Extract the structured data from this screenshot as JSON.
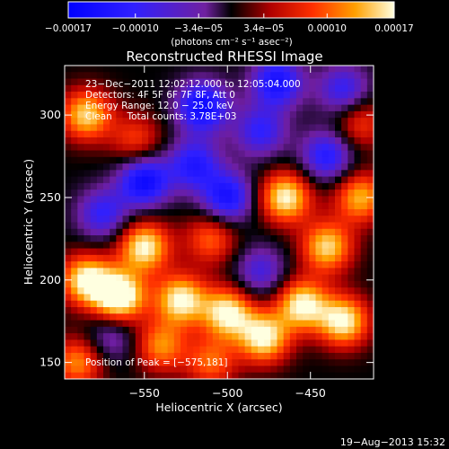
{
  "chart_data": {
    "type": "heatmap",
    "title": "Reconstructed RHESSI Image",
    "xlabel": "Heliocentric X (arcsec)",
    "ylabel": "Heliocentric Y (arcsec)",
    "xlim": [
      -598,
      -412
    ],
    "ylim": [
      140,
      330
    ],
    "xticks": [
      -550,
      -500,
      -450
    ],
    "xtick_labels": [
      "−550",
      "−500",
      "−450"
    ],
    "yticks": [
      150,
      200,
      250,
      300
    ],
    "ytick_labels": [
      "150",
      "200",
      "250",
      "300"
    ],
    "colorbar": {
      "min": -0.00017,
      "max": 0.00017,
      "ticks": [
        -0.00017,
        -0.0001,
        -3.4e-05,
        3.4e-05,
        0.0001,
        0.00017
      ],
      "tick_labels": [
        "−0.00017",
        "−0.00010",
        "−3.4e−05",
        "3.4e−05",
        "0.00010",
        "0.00017"
      ],
      "unit_label": "(photons cm⁻² s⁻¹ asec⁻²)"
    },
    "annotations": [
      "23−Dec−2011 12:02:12.000 to 12:05:04.000",
      "Detectors: 4F 5F 6F 7F 8F, Att 0",
      "Energy Range: 12.0 − 25.0 keV",
      "Clean     Total counts: 3.78E+03",
      "Position of Peak = [−575,181]"
    ],
    "peak_position": [
      -575,
      181
    ],
    "footer_date": "19−Aug−2013 15:32",
    "blobs": [
      {
        "x": -565,
        "y": 190,
        "v": 1.2
      },
      {
        "x": -585,
        "y": 200,
        "v": 1.0
      },
      {
        "x": -550,
        "y": 220,
        "v": 1.0
      },
      {
        "x": -528,
        "y": 188,
        "v": 1.0
      },
      {
        "x": -500,
        "y": 180,
        "v": 1.0
      },
      {
        "x": -478,
        "y": 165,
        "v": 1.0
      },
      {
        "x": -455,
        "y": 185,
        "v": 1.0
      },
      {
        "x": -430,
        "y": 175,
        "v": 1.0
      },
      {
        "x": -440,
        "y": 220,
        "v": 0.9
      },
      {
        "x": -465,
        "y": 250,
        "v": 1.0
      },
      {
        "x": -420,
        "y": 250,
        "v": 0.8
      },
      {
        "x": -510,
        "y": 225,
        "v": 0.6
      },
      {
        "x": -585,
        "y": 300,
        "v": 0.9
      },
      {
        "x": -555,
        "y": 285,
        "v": 0.5
      },
      {
        "x": -540,
        "y": 160,
        "v": 0.7
      },
      {
        "x": -510,
        "y": 150,
        "v": 0.6
      },
      {
        "x": -590,
        "y": 150,
        "v": 0.7
      },
      {
        "x": -420,
        "y": 295,
        "v": 0.5
      },
      {
        "x": -550,
        "y": 260,
        "v": -0.9
      },
      {
        "x": -500,
        "y": 250,
        "v": -0.8
      },
      {
        "x": -515,
        "y": 305,
        "v": -0.9
      },
      {
        "x": -470,
        "y": 320,
        "v": -0.8
      },
      {
        "x": -440,
        "y": 275,
        "v": -0.7
      },
      {
        "x": -575,
        "y": 240,
        "v": -0.6
      },
      {
        "x": -520,
        "y": 270,
        "v": -0.7
      },
      {
        "x": -480,
        "y": 290,
        "v": -0.6
      },
      {
        "x": -430,
        "y": 315,
        "v": -0.6
      },
      {
        "x": -480,
        "y": 205,
        "v": -0.5
      },
      {
        "x": -570,
        "y": 165,
        "v": -0.4
      }
    ]
  }
}
